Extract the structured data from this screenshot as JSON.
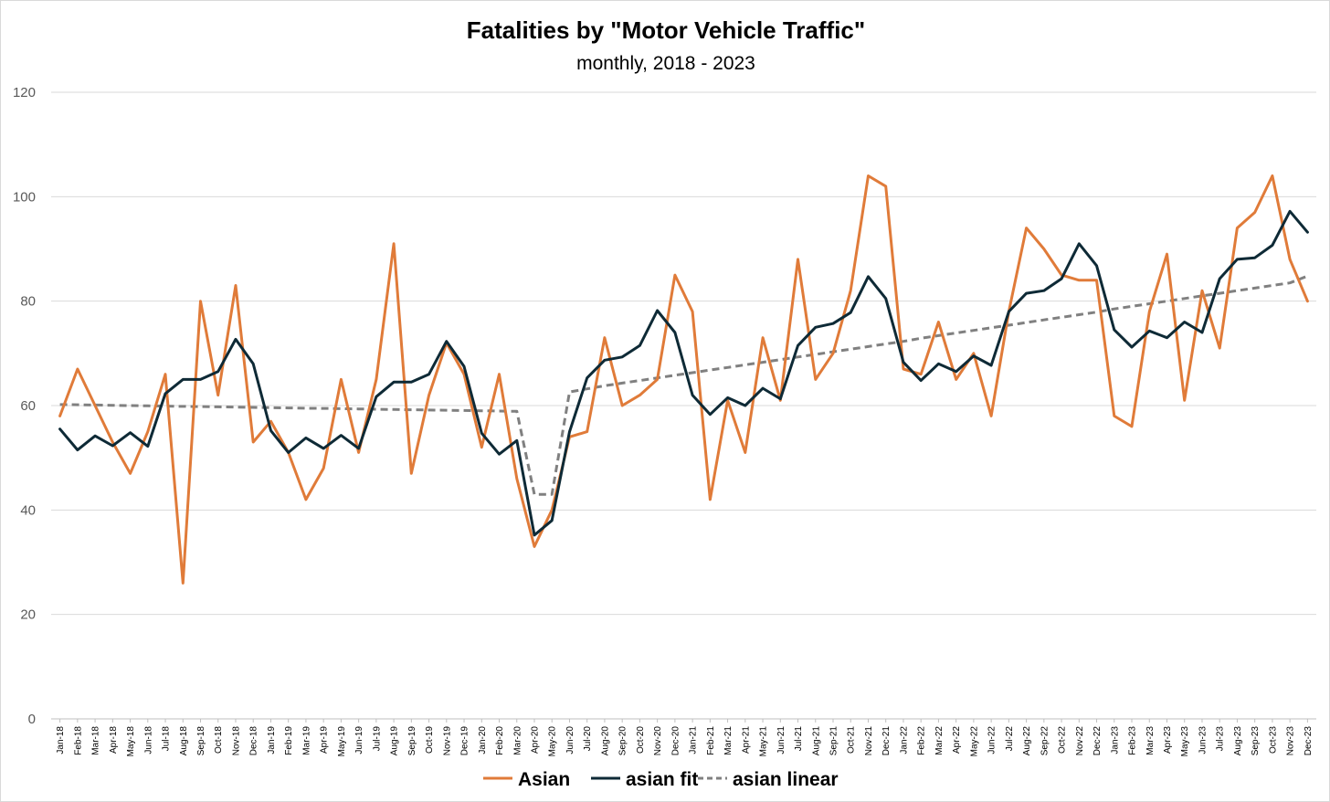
{
  "chart_data": {
    "type": "line",
    "title": "Fatalities by \"Motor Vehicle Traffic\"",
    "subtitle": "monthly, 2018 - 2023",
    "xlabel": "",
    "ylabel": "",
    "ylim": [
      0,
      120
    ],
    "yticks": [
      0,
      20,
      40,
      60,
      80,
      100,
      120
    ],
    "grid": "horizontal",
    "legend_position": "bottom",
    "categories": [
      "Jan-18",
      "Feb-18",
      "Mar-18",
      "Apr-18",
      "May-18",
      "Jun-18",
      "Jul-18",
      "Aug-18",
      "Sep-18",
      "Oct-18",
      "Nov-18",
      "Dec-18",
      "Jan-19",
      "Feb-19",
      "Mar-19",
      "Apr-19",
      "May-19",
      "Jun-19",
      "Jul-19",
      "Aug-19",
      "Sep-19",
      "Oct-19",
      "Nov-19",
      "Dec-19",
      "Jan-20",
      "Feb-20",
      "Mar-20",
      "Apr-20",
      "May-20",
      "Jun-20",
      "Jul-20",
      "Aug-20",
      "Sep-20",
      "Oct-20",
      "Nov-20",
      "Dec-20",
      "Jan-21",
      "Feb-21",
      "Mar-21",
      "Apr-21",
      "May-21",
      "Jun-21",
      "Jul-21",
      "Aug-21",
      "Sep-21",
      "Oct-21",
      "Nov-21",
      "Dec-21",
      "Jan-22",
      "Feb-22",
      "Mar-22",
      "Apr-22",
      "May-22",
      "Jun-22",
      "Jul-22",
      "Aug-22",
      "Sep-22",
      "Oct-22",
      "Nov-22",
      "Dec-22",
      "Jan-23",
      "Feb-23",
      "Mar-23",
      "Apr-23",
      "May-23",
      "Jun-23",
      "Jul-23",
      "Aug-23",
      "Sep-23",
      "Oct-23",
      "Nov-23",
      "Dec-23"
    ],
    "series": [
      {
        "name": "Asian",
        "color": "#E07B39",
        "style": "solid",
        "values": [
          58,
          67,
          60,
          53,
          47,
          55,
          66,
          26,
          80,
          62,
          83,
          53,
          57,
          51,
          42,
          48,
          65,
          51,
          65,
          91,
          47,
          62,
          72,
          66,
          52,
          66,
          46,
          33,
          40,
          54,
          55,
          73,
          60,
          62,
          65,
          85,
          78,
          42,
          61,
          51,
          73,
          61,
          88,
          65,
          70,
          82,
          104,
          102,
          67,
          66,
          76,
          65,
          70,
          58,
          78,
          94,
          90,
          85,
          84,
          84,
          58,
          56,
          78,
          89,
          61,
          82,
          71,
          94,
          97,
          104,
          88,
          80
        ]
      },
      {
        "name": "asian fit",
        "color": "#0E2A36",
        "style": "solid",
        "values": [
          55.5,
          51.5,
          54.2,
          52.3,
          54.8,
          52.2,
          62.3,
          65,
          65,
          66.5,
          72.7,
          68,
          55.2,
          51,
          53.8,
          51.8,
          54.3,
          51.8,
          61.7,
          64.5,
          64.5,
          66,
          72.3,
          67.5,
          54.7,
          50.7,
          53.3,
          35.2,
          38,
          55,
          65.3,
          68.7,
          69.3,
          71.5,
          78.2,
          74,
          62,
          58.3,
          61.5,
          60,
          63.3,
          61.3,
          71.5,
          75,
          75.7,
          77.8,
          84.7,
          80.5,
          68.3,
          64.8,
          68,
          66.5,
          69.5,
          67.7,
          78,
          81.5,
          82,
          84.3,
          91,
          86.8,
          74.5,
          71.2,
          74.3,
          73,
          76,
          74,
          84.3,
          88,
          88.3,
          90.7,
          97.2,
          93.2
        ]
      },
      {
        "name": "asian linear",
        "color": "#808080",
        "style": "dashed",
        "values": [
          60.2,
          60.15,
          60.1,
          60.05,
          60,
          59.95,
          59.9,
          59.85,
          59.8,
          59.75,
          59.7,
          59.65,
          59.6,
          59.55,
          59.5,
          59.45,
          59.4,
          59.35,
          59.3,
          59.25,
          59.2,
          59.15,
          59.1,
          59.05,
          59,
          58.95,
          58.9,
          43,
          43,
          62.6,
          63.2,
          63.8,
          64.3,
          64.8,
          65.3,
          65.8,
          66.3,
          66.8,
          67.3,
          67.8,
          68.3,
          68.8,
          69.3,
          69.8,
          70.3,
          70.8,
          71.3,
          71.8,
          72.3,
          72.9,
          73.4,
          73.9,
          74.4,
          74.9,
          75.4,
          75.9,
          76.4,
          76.9,
          77.4,
          77.9,
          78.5,
          79,
          79.5,
          80,
          80.5,
          81,
          81.5,
          82,
          82.5,
          83,
          83.5,
          84.8
        ]
      }
    ]
  }
}
